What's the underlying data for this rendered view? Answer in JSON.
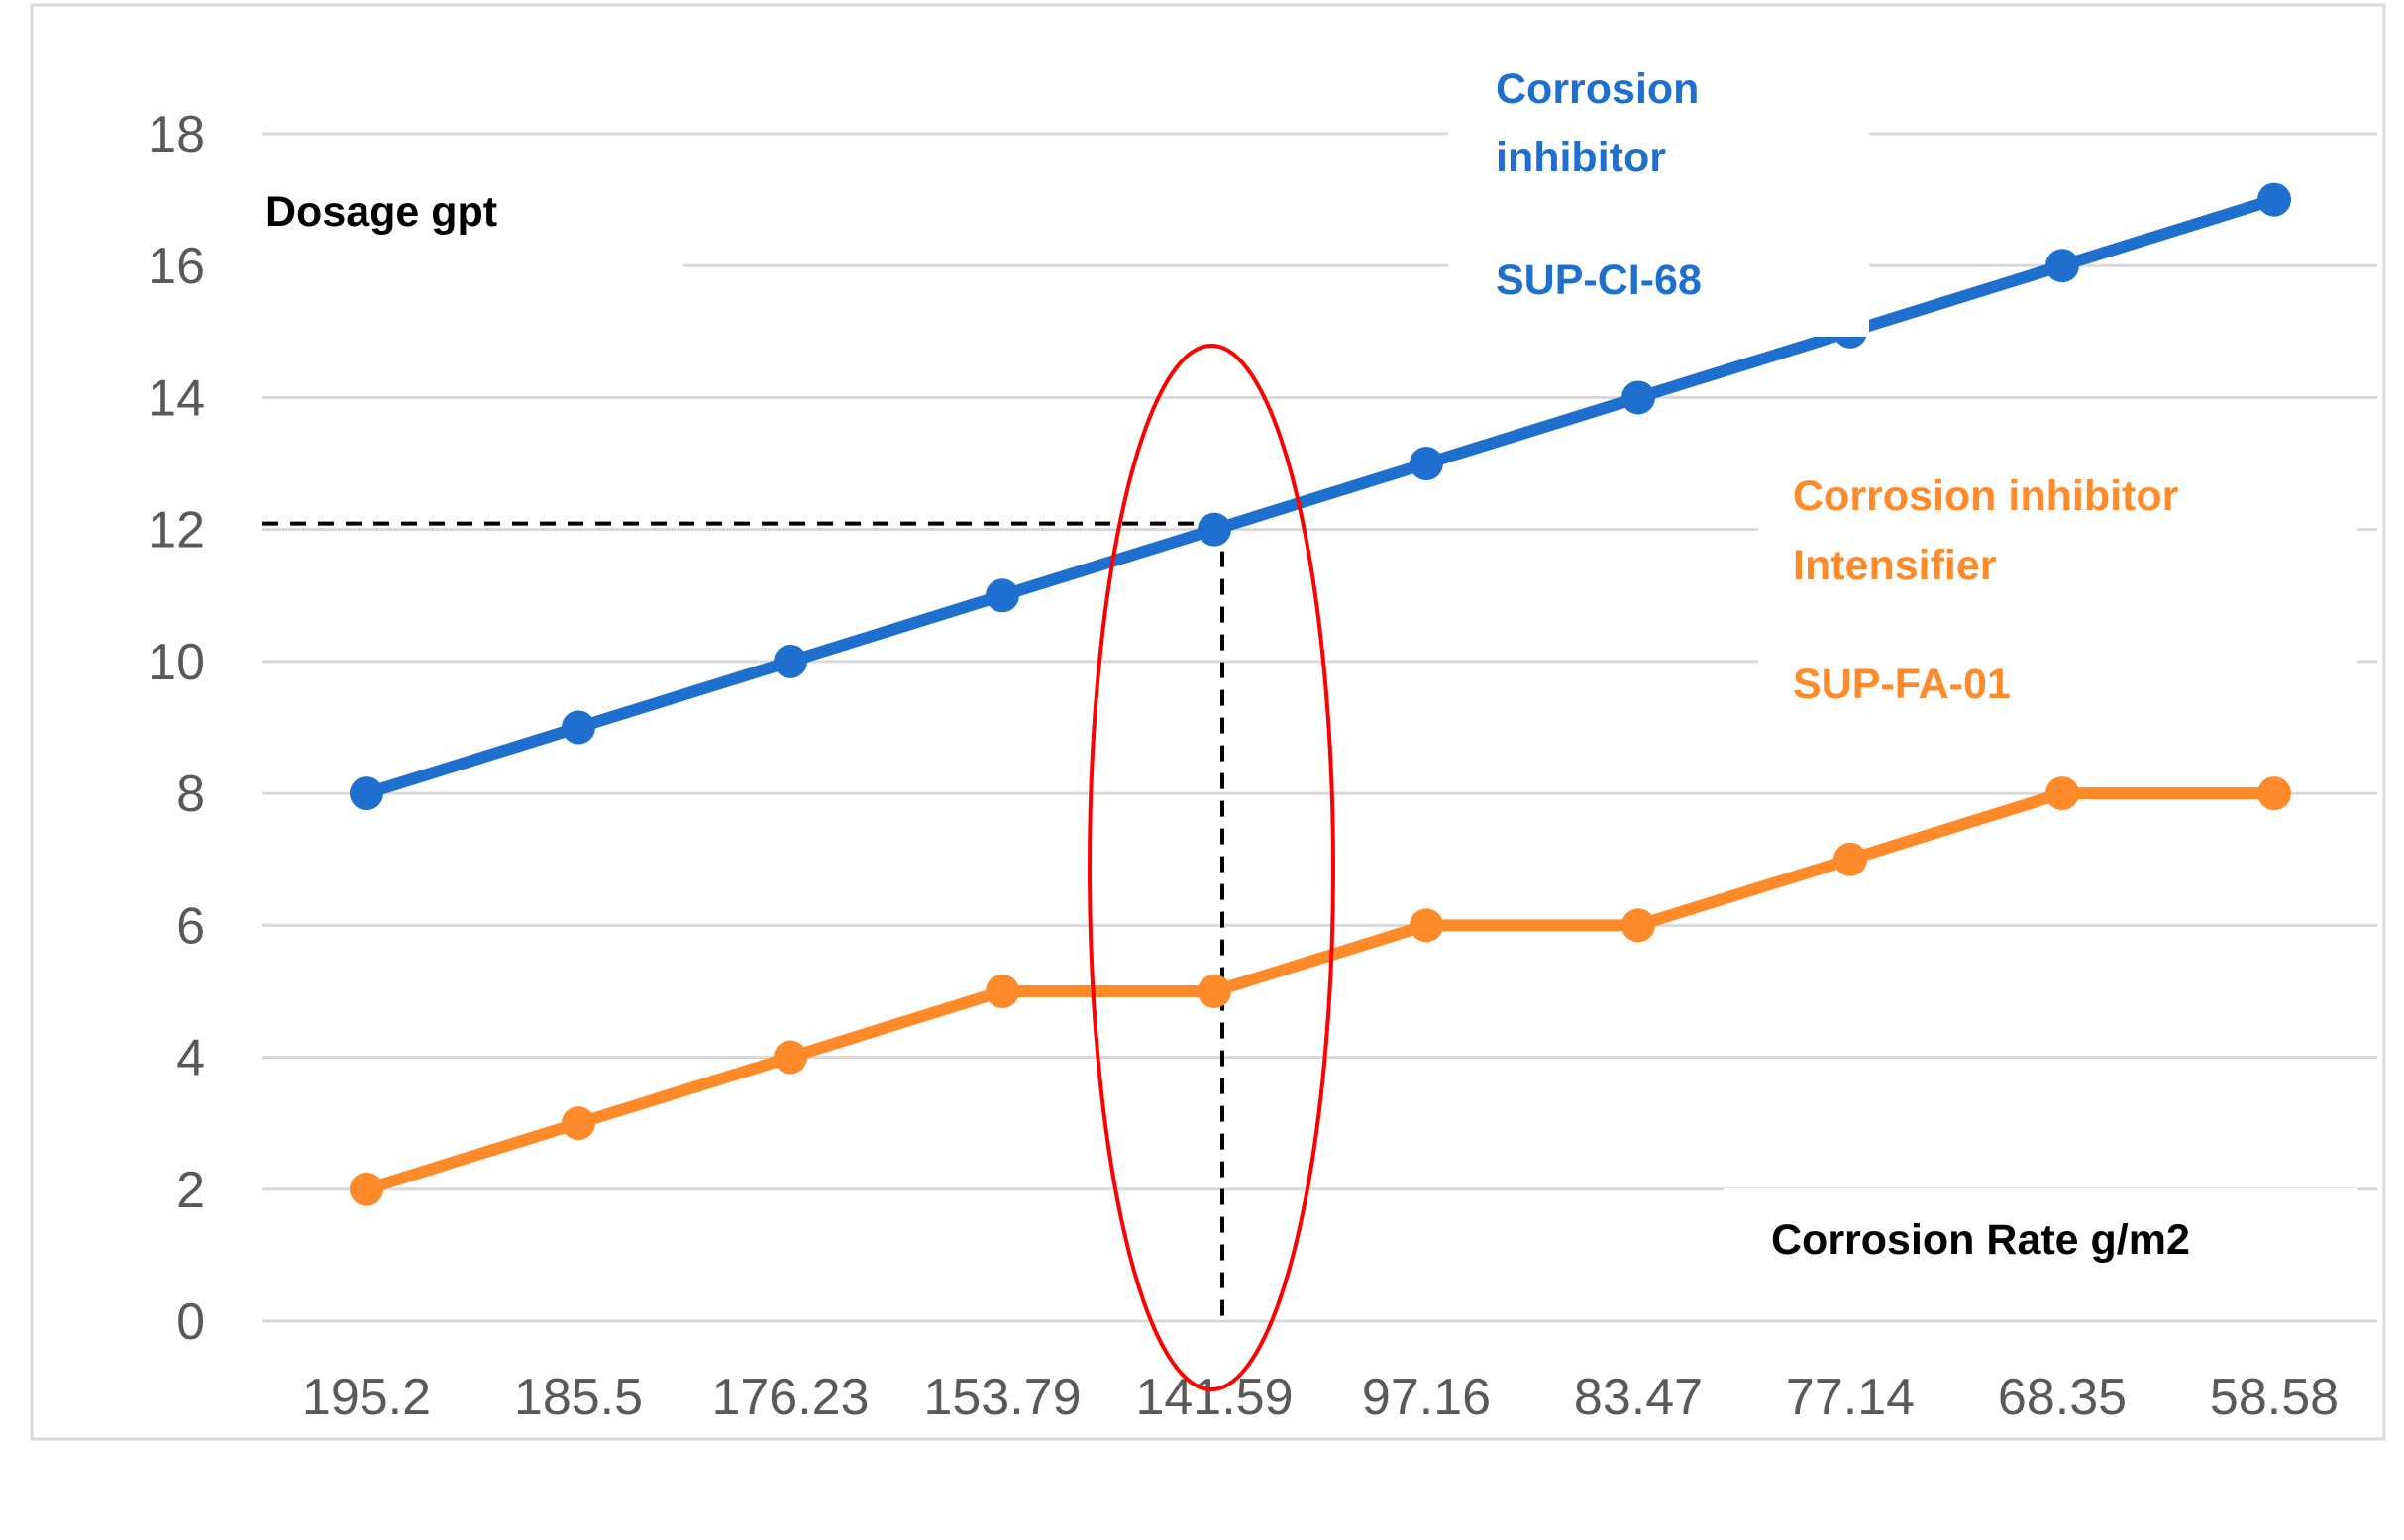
{
  "chart_data": {
    "type": "line",
    "categories": [
      "195.2",
      "185.5",
      "176.23",
      "153.79",
      "141.59",
      "97.16",
      "83.47",
      "77.14",
      "68.35",
      "58.58"
    ],
    "series": [
      {
        "name": "Corrosion inhibitor SUP-CI-68",
        "color": "#1f6fcf",
        "values": [
          8,
          9,
          10,
          11,
          12,
          13,
          14,
          15,
          16,
          17
        ]
      },
      {
        "name": "Corrosion inhibitor Intensifier SUP-FA-01",
        "color": "#ff8a2a",
        "values": [
          2,
          3,
          4,
          5,
          5,
          6,
          6,
          7,
          8,
          8
        ]
      }
    ],
    "ylim": [
      0,
      18
    ],
    "yticks": [
      0,
      2,
      4,
      6,
      8,
      10,
      12,
      14,
      16,
      18
    ],
    "grid": true,
    "ylabel": "Dosage gpt",
    "xlabel": "Corrosion Rate  g/m2",
    "highlight": {
      "category": "141.59",
      "value": 12,
      "style": "dashed guides + red ellipse"
    }
  },
  "labels": {
    "ylabel": "Dosage gpt",
    "xlabel": "Corrosion Rate  g/m2",
    "series1_line1": "Corrosion",
    "series1_line2": "inhibitor",
    "series1_code": "SUP-CI-68",
    "series2_line1": "Corrosion inhibitor",
    "series2_line2": "Intensifier",
    "series2_code": "SUP-FA-01"
  },
  "colors": {
    "series1": "#1f6fcf",
    "series2": "#ff8a2a",
    "highlight": "#ff0000",
    "grid": "#d9d9d9",
    "axis_text": "#595959"
  }
}
